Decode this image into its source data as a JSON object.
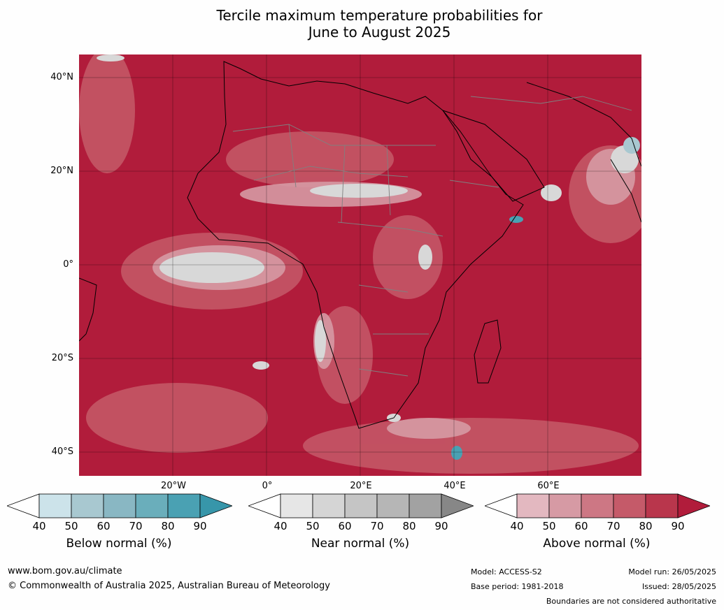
{
  "title_line1": "Tercile maximum temperature probabilities for",
  "title_line2": "June to August 2025",
  "lat_labels": [
    "40°N",
    "20°N",
    "0°",
    "20°S",
    "40°S"
  ],
  "lon_labels": [
    "20°W",
    "0°",
    "20°E",
    "40°E",
    "60°E"
  ],
  "colorbars": [
    {
      "label": "Below normal (%)",
      "ticks": [
        "40",
        "50",
        "60",
        "70",
        "80",
        "90"
      ],
      "colors": [
        "#ffffff",
        "#cce3ea",
        "#a8c8d0",
        "#89b7c3",
        "#6aaebb",
        "#4aa1b3",
        "#3796aa"
      ]
    },
    {
      "label": "Near normal (%)",
      "ticks": [
        "40",
        "50",
        "60",
        "70",
        "80",
        "90"
      ],
      "colors": [
        "#ffffff",
        "#e6e6e6",
        "#d5d5d5",
        "#c5c5c5",
        "#b6b6b6",
        "#a2a2a2",
        "#878787"
      ]
    },
    {
      "label": "Above normal (%)",
      "ticks": [
        "40",
        "50",
        "60",
        "70",
        "80",
        "90"
      ],
      "colors": [
        "#ffffff",
        "#e3b8c0",
        "#d69aa4",
        "#cd7784",
        "#c55a69",
        "#b9364c",
        "#b11c3b"
      ]
    }
  ],
  "map_colors": {
    "above_90": "#b11c3b",
    "above_80": "#b9364c",
    "above_70": "#c55a69",
    "near": "#d8d8d8",
    "below": "#4aa1b3"
  },
  "footer": {
    "website": "www.bom.gov.au/climate",
    "copyright": "© Commonwealth of Australia 2025, Australian Bureau of Meteorology",
    "model": "Model: ACCESS-S2",
    "base_period": "Base period: 1981-2018",
    "model_run": "Model run: 26/05/2025",
    "issued": "Issued: 28/05/2025",
    "disclaimer": "Boundaries are not considered authoritative"
  }
}
